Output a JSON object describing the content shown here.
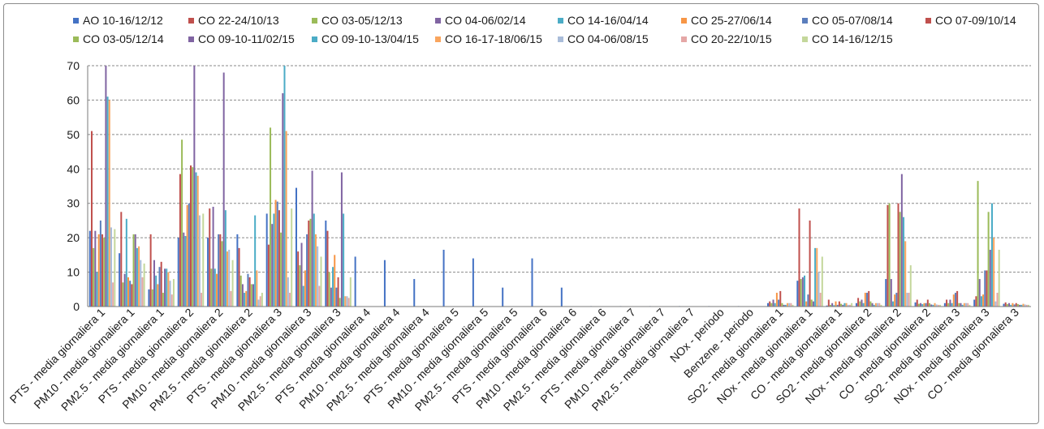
{
  "chart_data": {
    "type": "bar",
    "ylim": [
      0,
      70
    ],
    "yticks": [
      "0",
      "10",
      "20",
      "30",
      "40",
      "50",
      "60",
      "70"
    ],
    "grid": true,
    "legend_position": "top",
    "categories": [
      "PTS - media giornaliera 1",
      "PM10 - media giornaliera 1",
      "PM2.5 - media giornaliera 1",
      "PTS - media giornaliera 2",
      "PM10 - media giornaliera 2",
      "PM2.5 - media giornaliera 2",
      "PTS - media giornaliera 3",
      "PM10 - media giornaliera 3",
      "PM2.5 - media giornaliera 3",
      "PTS - media giornaliera 4",
      "PM10 - media giornaliera 4",
      "PM2.5 - media giornaliera 4",
      "PTS - media giornaliera 5",
      "PM10 - media giornaliera 5",
      "PM2.5 - media giornaliera 5",
      "PTS - media giornaliera 6",
      "PM10 - media giornaliera 6",
      "PM2.5 - media giornaliera 6",
      "PTS - media giornaliera 7",
      "PM10 - media giornaliera 7",
      "PM2.5 - media giornaliera 7",
      "NOx - periodo",
      "Benzene - periodo",
      "SO2 - media giornaliera 1",
      "NOx - media giornaliera 1",
      "CO - media giornaliera 1",
      "SO2 - media giornaliera 2",
      "NOx - media giornaliera 2",
      "CO - media giornaliera 2",
      "SO2 - media giornaliera 3",
      "NOx - media giornaliera 3",
      "CO - media giornaliera 3"
    ],
    "series": [
      {
        "name": "AO 10-16/12/12",
        "color": "#4472c4",
        "values": [
          22,
          15.5,
          5,
          20,
          20,
          21,
          27,
          34.5,
          25,
          14.5,
          13.5,
          8,
          16.5,
          14,
          5.5,
          14,
          5.5,
          0,
          0,
          0,
          0,
          0,
          0,
          1,
          7.5,
          0.3,
          1,
          8,
          1.2,
          1,
          2,
          0.8
        ]
      },
      {
        "name": "CO 22-24/10/13",
        "color": "#c0504d",
        "values": [
          51,
          27.5,
          21,
          38.5,
          28.5,
          17,
          18,
          16,
          22,
          null,
          null,
          null,
          null,
          null,
          null,
          null,
          null,
          null,
          null,
          null,
          null,
          null,
          null,
          1.5,
          28.5,
          2,
          2.5,
          29.5,
          2,
          2,
          3,
          1.2
        ]
      },
      {
        "name": "CO 03-05/12/13",
        "color": "#9bbb59",
        "values": [
          17,
          7,
          5,
          48.5,
          11,
          9,
          52,
          12,
          10,
          null,
          null,
          null,
          null,
          null,
          null,
          null,
          null,
          null,
          null,
          null,
          null,
          null,
          null,
          1,
          8,
          0.5,
          1.5,
          30,
          0.8,
          1,
          36.5,
          0.7
        ]
      },
      {
        "name": "CO 04-06/02/14",
        "color": "#8064a2",
        "values": [
          22,
          9.5,
          13.5,
          21.5,
          29,
          6.5,
          24,
          18.5,
          5.5,
          null,
          null,
          null,
          null,
          null,
          null,
          null,
          null,
          null,
          null,
          null,
          null,
          null,
          null,
          2,
          8.5,
          1,
          2,
          8,
          1,
          2,
          8,
          1
        ]
      },
      {
        "name": "CO 14-16/04/14",
        "color": "#4bacc6",
        "values": [
          10,
          25.5,
          9,
          20.5,
          11,
          4,
          27,
          6,
          11.5,
          null,
          null,
          null,
          null,
          null,
          null,
          null,
          null,
          null,
          null,
          null,
          null,
          null,
          null,
          1,
          9,
          0.4,
          1,
          1.5,
          0.7,
          1,
          3,
          0.5
        ]
      },
      {
        "name": "CO 25-27/06/14",
        "color": "#f79646",
        "values": [
          21,
          8.5,
          6.5,
          29.5,
          9.5,
          4.5,
          31,
          10.5,
          15,
          null,
          null,
          null,
          null,
          null,
          null,
          null,
          null,
          null,
          null,
          null,
          null,
          null,
          null,
          4,
          1.5,
          1.5,
          4,
          3.5,
          1,
          3.5,
          3.5,
          1
        ]
      },
      {
        "name": "CO 05-07/08/14",
        "color": "#5b7ebd",
        "values": [
          25,
          7.5,
          11.5,
          30,
          21,
          9.5,
          30.5,
          21,
          5.5,
          null,
          null,
          null,
          null,
          null,
          null,
          null,
          null,
          null,
          null,
          null,
          null,
          null,
          null,
          2,
          3.5,
          0.5,
          4,
          4,
          1,
          4,
          10.5,
          0.6
        ]
      },
      {
        "name": "CO 07-09/10/14",
        "color": "#c0504d",
        "values": [
          21,
          6.5,
          13,
          41,
          21,
          8.5,
          28,
          25,
          8.5,
          null,
          null,
          null,
          null,
          null,
          null,
          null,
          null,
          null,
          null,
          null,
          null,
          null,
          null,
          4.5,
          25,
          1.5,
          4.5,
          30,
          2,
          4.5,
          10.5,
          1
        ]
      },
      {
        "name": "CO 03-05/12/14",
        "color": "#9bbb59",
        "values": [
          20,
          21,
          4,
          40.5,
          19,
          6.5,
          21.5,
          25.5,
          2.5,
          null,
          null,
          null,
          null,
          null,
          null,
          null,
          null,
          null,
          null,
          null,
          null,
          null,
          null,
          1,
          2,
          0.8,
          1.5,
          27.5,
          1,
          1,
          27.5,
          0.7
        ]
      },
      {
        "name": "CO 09-10-11/02/15",
        "color": "#8064a2",
        "values": [
          70,
          21,
          11,
          70,
          68,
          6.5,
          62,
          39.5,
          39,
          null,
          null,
          null,
          null,
          null,
          null,
          null,
          null,
          null,
          null,
          null,
          null,
          null,
          null,
          0.5,
          1.5,
          0.5,
          1,
          38.5,
          0.6,
          1,
          16.5,
          0.5
        ]
      },
      {
        "name": "CO 09-10-13/04/15",
        "color": "#4bacc6",
        "values": [
          61,
          17,
          11,
          39,
          28,
          26.5,
          70,
          27,
          27,
          null,
          null,
          null,
          null,
          null,
          null,
          null,
          null,
          null,
          null,
          null,
          null,
          null,
          null,
          0.5,
          17,
          1,
          0.5,
          26,
          0.5,
          0.5,
          30,
          0.5
        ]
      },
      {
        "name": "CO 16-17-18/06/15",
        "color": "#f9a55e",
        "values": [
          60,
          17.5,
          10,
          38,
          16,
          10.5,
          51,
          21,
          3,
          null,
          null,
          null,
          null,
          null,
          null,
          null,
          null,
          null,
          null,
          null,
          null,
          null,
          null,
          1,
          17,
          1,
          1,
          19,
          1,
          1,
          20,
          0.8
        ]
      },
      {
        "name": "CO 04-06/08/15",
        "color": "#a9bcd9",
        "values": [
          23,
          13.5,
          7.5,
          26.5,
          16.5,
          2,
          8.5,
          17.5,
          3,
          null,
          null,
          null,
          null,
          null,
          null,
          null,
          null,
          null,
          null,
          null,
          null,
          null,
          null,
          1,
          10,
          0.5,
          1,
          4,
          0.6,
          1,
          1.5,
          0.6
        ]
      },
      {
        "name": "CO 20-22/10/15",
        "color": "#e5a7a6",
        "values": [
          7,
          8.5,
          3.5,
          4,
          4.5,
          3,
          4,
          6,
          2.5,
          null,
          null,
          null,
          null,
          null,
          null,
          null,
          null,
          null,
          null,
          null,
          null,
          null,
          null,
          1,
          4,
          0.5,
          1,
          4,
          0.5,
          1,
          4,
          0.5
        ]
      },
      {
        "name": "CO 14-16/12/15",
        "color": "#c4d79b",
        "values": [
          22.5,
          12.5,
          8,
          27,
          13.5,
          4,
          28.5,
          14.5,
          8.5,
          null,
          null,
          null,
          null,
          null,
          null,
          null,
          null,
          null,
          null,
          null,
          null,
          null,
          null,
          0.5,
          14.5,
          1,
          0.5,
          12,
          0.5,
          0.5,
          16.5,
          0.5
        ]
      }
    ]
  }
}
